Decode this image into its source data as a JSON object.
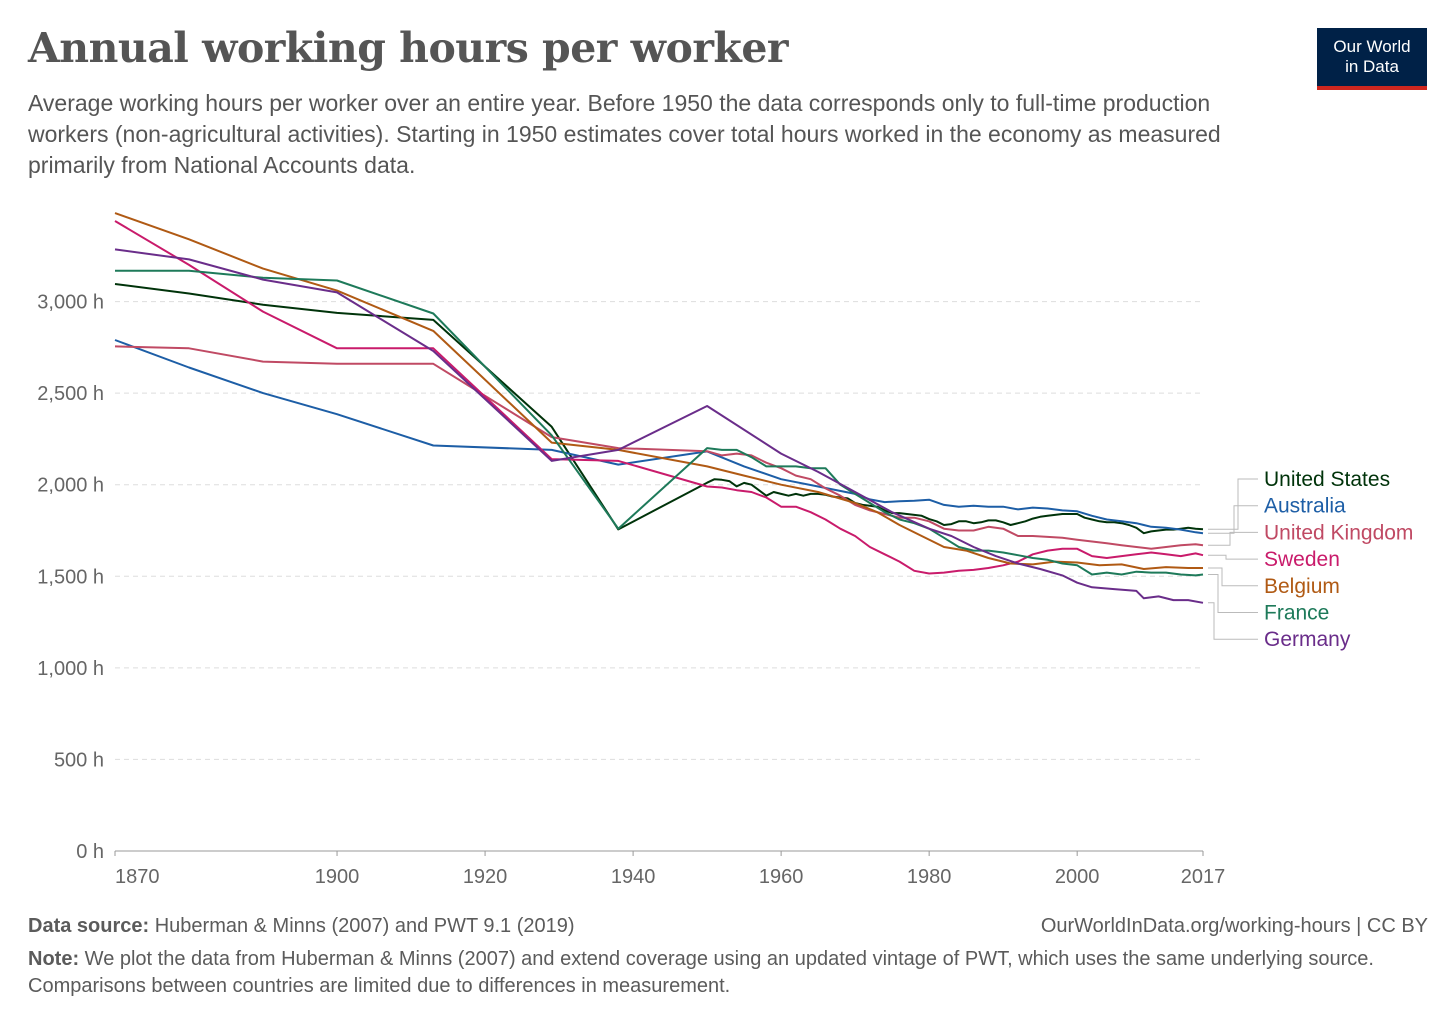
{
  "header": {
    "title": "Annual working hours per worker",
    "subtitle": "Average working hours per worker over an entire year. Before 1950 the data corresponds only to full-time production workers (non-agricultural activities). Starting in 1950 estimates cover total hours worked in the economy as measured primarily from National Accounts data.",
    "logo_line1": "Our World",
    "logo_line2": "in Data"
  },
  "footer": {
    "source_label": "Data source:",
    "source_text": "Huberman & Minns (2007) and PWT 9.1 (2019)",
    "url_text": "OurWorldInData.org/working-hours | CC BY",
    "note_label": "Note:",
    "note_text": "We plot the data from Huberman & Minns (2007) and extend coverage using an updated vintage of PWT, which uses the same underlying source. Comparisons between countries are limited due to differences in measurement."
  },
  "chart_data": {
    "type": "line",
    "title": "Annual working hours per worker",
    "xlabel": "",
    "ylabel": "",
    "xlim": [
      1870,
      2017
    ],
    "ylim": [
      0,
      3500
    ],
    "x_ticks": [
      1870,
      1900,
      1920,
      1940,
      1960,
      1980,
      2000,
      2017
    ],
    "y_ticks": [
      0,
      500,
      1000,
      1500,
      2000,
      2500,
      3000
    ],
    "y_tick_labels": [
      "0 h",
      "500 h",
      "1,000 h",
      "1,500 h",
      "2,000 h",
      "2,500 h",
      "3,000 h"
    ],
    "grid": "horizontal dashed",
    "legend_placement": "right, labels at line ends",
    "series": [
      {
        "name": "United States",
        "color": "#00330a",
        "points": [
          [
            1870,
            3096
          ],
          [
            1880,
            3044
          ],
          [
            1890,
            2983
          ],
          [
            1900,
            2938
          ],
          [
            1913,
            2900
          ],
          [
            1929,
            2316
          ],
          [
            1938,
            1756
          ],
          [
            1950,
            2011
          ],
          [
            1951,
            2030
          ],
          [
            1952,
            2027
          ],
          [
            1953,
            2020
          ],
          [
            1954,
            1991
          ],
          [
            1955,
            2010
          ],
          [
            1956,
            2000
          ],
          [
            1957,
            1970
          ],
          [
            1958,
            1940
          ],
          [
            1959,
            1960
          ],
          [
            1960,
            1950
          ],
          [
            1961,
            1940
          ],
          [
            1962,
            1950
          ],
          [
            1963,
            1940
          ],
          [
            1964,
            1950
          ],
          [
            1965,
            1950
          ],
          [
            1966,
            1945
          ],
          [
            1967,
            1935
          ],
          [
            1968,
            1930
          ],
          [
            1969,
            1925
          ],
          [
            1970,
            1900
          ],
          [
            1971,
            1890
          ],
          [
            1972,
            1885
          ],
          [
            1973,
            1880
          ],
          [
            1974,
            1860
          ],
          [
            1975,
            1845
          ],
          [
            1976,
            1845
          ],
          [
            1977,
            1840
          ],
          [
            1978,
            1835
          ],
          [
            1979,
            1830
          ],
          [
            1980,
            1812
          ],
          [
            1981,
            1800
          ],
          [
            1982,
            1780
          ],
          [
            1983,
            1785
          ],
          [
            1984,
            1800
          ],
          [
            1985,
            1800
          ],
          [
            1986,
            1790
          ],
          [
            1987,
            1795
          ],
          [
            1988,
            1805
          ],
          [
            1989,
            1805
          ],
          [
            1990,
            1795
          ],
          [
            1991,
            1780
          ],
          [
            1992,
            1790
          ],
          [
            1993,
            1800
          ],
          [
            1994,
            1815
          ],
          [
            1995,
            1825
          ],
          [
            1996,
            1830
          ],
          [
            1997,
            1835
          ],
          [
            1998,
            1840
          ],
          [
            1999,
            1840
          ],
          [
            2000,
            1840
          ],
          [
            2001,
            1820
          ],
          [
            2002,
            1810
          ],
          [
            2003,
            1800
          ],
          [
            2004,
            1795
          ],
          [
            2005,
            1795
          ],
          [
            2006,
            1790
          ],
          [
            2007,
            1780
          ],
          [
            2008,
            1765
          ],
          [
            2009,
            1735
          ],
          [
            2010,
            1745
          ],
          [
            2011,
            1750
          ],
          [
            2012,
            1755
          ],
          [
            2013,
            1755
          ],
          [
            2014,
            1760
          ],
          [
            2015,
            1765
          ],
          [
            2016,
            1760
          ],
          [
            2017,
            1757
          ]
        ]
      },
      {
        "name": "Australia",
        "color": "#1d5ea6",
        "points": [
          [
            1870,
            2790
          ],
          [
            1880,
            2640
          ],
          [
            1890,
            2500
          ],
          [
            1900,
            2385
          ],
          [
            1913,
            2214
          ],
          [
            1929,
            2190
          ],
          [
            1938,
            2110
          ],
          [
            1950,
            2182
          ],
          [
            1955,
            2100
          ],
          [
            1960,
            2030
          ],
          [
            1965,
            1990
          ],
          [
            1970,
            1950
          ],
          [
            1972,
            1920
          ],
          [
            1974,
            1905
          ],
          [
            1976,
            1910
          ],
          [
            1978,
            1912
          ],
          [
            1980,
            1918
          ],
          [
            1982,
            1890
          ],
          [
            1984,
            1880
          ],
          [
            1986,
            1885
          ],
          [
            1988,
            1880
          ],
          [
            1990,
            1880
          ],
          [
            1992,
            1865
          ],
          [
            1994,
            1875
          ],
          [
            1996,
            1870
          ],
          [
            1998,
            1860
          ],
          [
            2000,
            1855
          ],
          [
            2002,
            1830
          ],
          [
            2004,
            1810
          ],
          [
            2006,
            1800
          ],
          [
            2008,
            1790
          ],
          [
            2010,
            1770
          ],
          [
            2012,
            1765
          ],
          [
            2014,
            1755
          ],
          [
            2016,
            1740
          ],
          [
            2017,
            1735
          ]
        ]
      },
      {
        "name": "United Kingdom",
        "color": "#c04a64",
        "points": [
          [
            1870,
            2755
          ],
          [
            1880,
            2745
          ],
          [
            1890,
            2672
          ],
          [
            1900,
            2660
          ],
          [
            1913,
            2660
          ],
          [
            1929,
            2260
          ],
          [
            1938,
            2200
          ],
          [
            1950,
            2183
          ],
          [
            1952,
            2160
          ],
          [
            1954,
            2170
          ],
          [
            1956,
            2160
          ],
          [
            1958,
            2120
          ],
          [
            1960,
            2090
          ],
          [
            1962,
            2050
          ],
          [
            1964,
            2030
          ],
          [
            1966,
            1980
          ],
          [
            1968,
            1940
          ],
          [
            1970,
            1890
          ],
          [
            1972,
            1860
          ],
          [
            1974,
            1840
          ],
          [
            1976,
            1820
          ],
          [
            1978,
            1820
          ],
          [
            1980,
            1800
          ],
          [
            1982,
            1760
          ],
          [
            1984,
            1750
          ],
          [
            1986,
            1750
          ],
          [
            1988,
            1770
          ],
          [
            1990,
            1760
          ],
          [
            1992,
            1720
          ],
          [
            1994,
            1720
          ],
          [
            1996,
            1715
          ],
          [
            1998,
            1710
          ],
          [
            2000,
            1700
          ],
          [
            2002,
            1690
          ],
          [
            2004,
            1680
          ],
          [
            2006,
            1670
          ],
          [
            2008,
            1660
          ],
          [
            2010,
            1650
          ],
          [
            2012,
            1660
          ],
          [
            2014,
            1670
          ],
          [
            2016,
            1675
          ],
          [
            2017,
            1670
          ]
        ]
      },
      {
        "name": "Sweden",
        "color": "#c91b6b",
        "points": [
          [
            1870,
            3440
          ],
          [
            1880,
            3200
          ],
          [
            1890,
            2945
          ],
          [
            1900,
            2745
          ],
          [
            1913,
            2745
          ],
          [
            1929,
            2140
          ],
          [
            1938,
            2130
          ],
          [
            1950,
            1990
          ],
          [
            1952,
            1985
          ],
          [
            1954,
            1970
          ],
          [
            1956,
            1960
          ],
          [
            1958,
            1930
          ],
          [
            1960,
            1880
          ],
          [
            1962,
            1880
          ],
          [
            1964,
            1850
          ],
          [
            1966,
            1810
          ],
          [
            1968,
            1760
          ],
          [
            1970,
            1720
          ],
          [
            1972,
            1660
          ],
          [
            1974,
            1620
          ],
          [
            1976,
            1580
          ],
          [
            1978,
            1530
          ],
          [
            1980,
            1515
          ],
          [
            1982,
            1520
          ],
          [
            1984,
            1530
          ],
          [
            1986,
            1535
          ],
          [
            1988,
            1545
          ],
          [
            1990,
            1560
          ],
          [
            1992,
            1580
          ],
          [
            1994,
            1620
          ],
          [
            1996,
            1640
          ],
          [
            1998,
            1650
          ],
          [
            2000,
            1650
          ],
          [
            2002,
            1610
          ],
          [
            2004,
            1600
          ],
          [
            2006,
            1610
          ],
          [
            2008,
            1620
          ],
          [
            2010,
            1630
          ],
          [
            2012,
            1620
          ],
          [
            2014,
            1610
          ],
          [
            2016,
            1625
          ],
          [
            2017,
            1615
          ]
        ]
      },
      {
        "name": "Belgium",
        "color": "#b05a14",
        "points": [
          [
            1870,
            3483
          ],
          [
            1880,
            3340
          ],
          [
            1890,
            3180
          ],
          [
            1900,
            3060
          ],
          [
            1913,
            2840
          ],
          [
            1929,
            2230
          ],
          [
            1938,
            2190
          ],
          [
            1950,
            2100
          ],
          [
            1955,
            2050
          ],
          [
            1960,
            2000
          ],
          [
            1965,
            1960
          ],
          [
            1970,
            1900
          ],
          [
            1973,
            1850
          ],
          [
            1976,
            1780
          ],
          [
            1979,
            1720
          ],
          [
            1982,
            1660
          ],
          [
            1985,
            1640
          ],
          [
            1988,
            1600
          ],
          [
            1991,
            1570
          ],
          [
            1994,
            1565
          ],
          [
            1997,
            1580
          ],
          [
            2000,
            1575
          ],
          [
            2003,
            1560
          ],
          [
            2006,
            1565
          ],
          [
            2009,
            1540
          ],
          [
            2012,
            1550
          ],
          [
            2015,
            1545
          ],
          [
            2017,
            1545
          ]
        ]
      },
      {
        "name": "France",
        "color": "#1e7a5a",
        "points": [
          [
            1870,
            3168
          ],
          [
            1880,
            3168
          ],
          [
            1890,
            3130
          ],
          [
            1900,
            3115
          ],
          [
            1913,
            2935
          ],
          [
            1929,
            2270
          ],
          [
            1938,
            1760
          ],
          [
            1950,
            2200
          ],
          [
            1952,
            2190
          ],
          [
            1954,
            2190
          ],
          [
            1956,
            2150
          ],
          [
            1958,
            2100
          ],
          [
            1960,
            2100
          ],
          [
            1962,
            2100
          ],
          [
            1964,
            2090
          ],
          [
            1966,
            2090
          ],
          [
            1968,
            2000
          ],
          [
            1970,
            1950
          ],
          [
            1972,
            1900
          ],
          [
            1974,
            1850
          ],
          [
            1976,
            1810
          ],
          [
            1978,
            1790
          ],
          [
            1980,
            1760
          ],
          [
            1982,
            1710
          ],
          [
            1984,
            1660
          ],
          [
            1986,
            1640
          ],
          [
            1988,
            1640
          ],
          [
            1990,
            1630
          ],
          [
            1992,
            1615
          ],
          [
            1994,
            1600
          ],
          [
            1996,
            1590
          ],
          [
            1998,
            1570
          ],
          [
            2000,
            1560
          ],
          [
            2002,
            1510
          ],
          [
            2004,
            1520
          ],
          [
            2006,
            1510
          ],
          [
            2008,
            1525
          ],
          [
            2010,
            1520
          ],
          [
            2012,
            1520
          ],
          [
            2014,
            1510
          ],
          [
            2016,
            1505
          ],
          [
            2017,
            1510
          ]
        ]
      },
      {
        "name": "Germany",
        "color": "#6a2d8a",
        "points": [
          [
            1870,
            3285
          ],
          [
            1880,
            3230
          ],
          [
            1890,
            3120
          ],
          [
            1900,
            3050
          ],
          [
            1913,
            2730
          ],
          [
            1929,
            2130
          ],
          [
            1938,
            2190
          ],
          [
            1950,
            2430
          ],
          [
            1960,
            2170
          ],
          [
            1965,
            2070
          ],
          [
            1970,
            1960
          ],
          [
            1975,
            1850
          ],
          [
            1980,
            1760
          ],
          [
            1983,
            1720
          ],
          [
            1986,
            1660
          ],
          [
            1989,
            1610
          ],
          [
            1992,
            1570
          ],
          [
            1995,
            1540
          ],
          [
            1998,
            1505
          ],
          [
            2000,
            1465
          ],
          [
            2002,
            1440
          ],
          [
            2005,
            1430
          ],
          [
            2008,
            1420
          ],
          [
            2009,
            1380
          ],
          [
            2011,
            1390
          ],
          [
            2013,
            1370
          ],
          [
            2015,
            1370
          ],
          [
            2017,
            1355
          ]
        ]
      }
    ]
  }
}
